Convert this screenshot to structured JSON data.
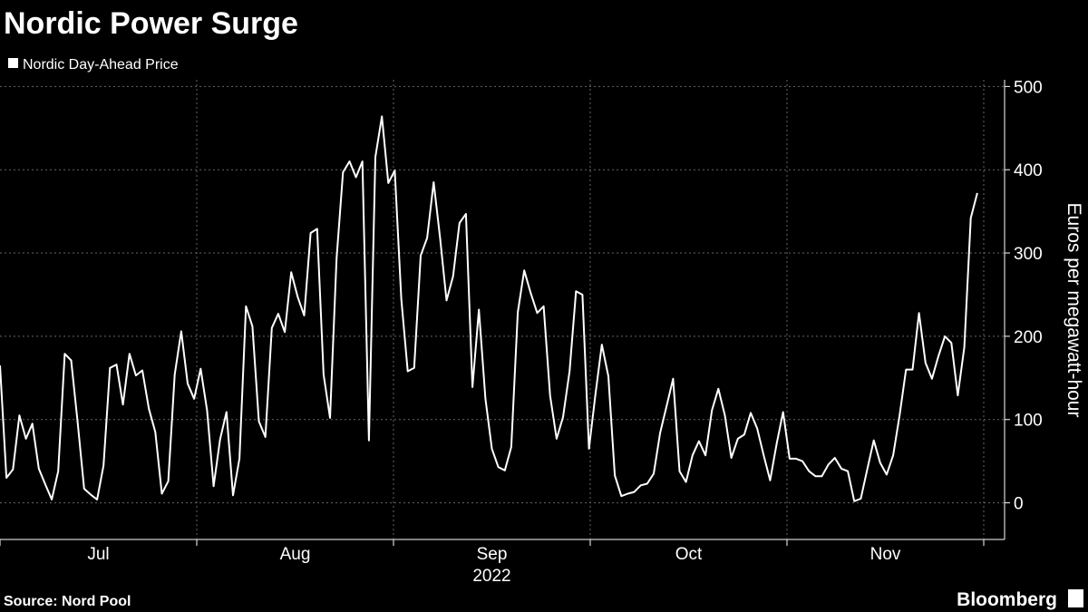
{
  "chart_data": {
    "type": "line",
    "title": "Nordic Power Surge",
    "y_label": "Euros per megawatt-hour",
    "months": [
      "Jul",
      "Aug",
      "Sep",
      "Oct",
      "Nov"
    ],
    "year": "2022",
    "series": [
      {
        "name": "Nordic Day-Ahead Price",
        "color": "#ffffff",
        "values": [
          165,
          30,
          40,
          105,
          77,
          95,
          41,
          22,
          4,
          38,
          179,
          171,
          96,
          17,
          10,
          4,
          45,
          162,
          166,
          118,
          179,
          153,
          159,
          113,
          85,
          11,
          26,
          154,
          206,
          143,
          125,
          161,
          111,
          20,
          76,
          109,
          9,
          53,
          236,
          212,
          98,
          79,
          210,
          227,
          205,
          277,
          247,
          225,
          324,
          329,
          154,
          102,
          293,
          397,
          410,
          391,
          410,
          75,
          415,
          464,
          384,
          399,
          245,
          158,
          162,
          297,
          318,
          385,
          318,
          243,
          272,
          336,
          347,
          139,
          232,
          125,
          65,
          43,
          39,
          67,
          229,
          279,
          252,
          228,
          236,
          129,
          77,
          103,
          158,
          254,
          250,
          65,
          130,
          190,
          152,
          33,
          8,
          11,
          13,
          21,
          23,
          35,
          84,
          116,
          149,
          38,
          25,
          57,
          74,
          57,
          111,
          137,
          105,
          54,
          77,
          82,
          108,
          89,
          57,
          27,
          71,
          109,
          53,
          53,
          50,
          38,
          32,
          32,
          46,
          54,
          41,
          38,
          2,
          5,
          40,
          75,
          48,
          34,
          57,
          105,
          160,
          160,
          228,
          168,
          149,
          176,
          200,
          192,
          129,
          187,
          342,
          372
        ]
      }
    ],
    "ylim": [
      -44,
      508
    ],
    "yticks": [
      0,
      100,
      200,
      300,
      400,
      500
    ],
    "grid": true,
    "source": "Source: Nord Pool",
    "brand": "Bloomberg"
  }
}
